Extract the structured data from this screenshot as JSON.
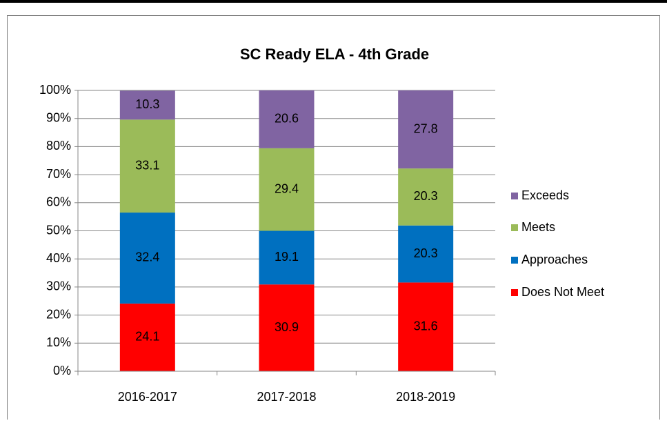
{
  "chart_data": {
    "type": "bar",
    "stacked": true,
    "title": "SC Ready ELA - 4th Grade",
    "categories": [
      "2016-2017",
      "2017-2018",
      "2018-2019"
    ],
    "series": [
      {
        "name": "Does Not Meet",
        "color": "#ff0000",
        "values": [
          24.1,
          30.9,
          31.6
        ]
      },
      {
        "name": "Approaches",
        "color": "#0070c0",
        "values": [
          32.4,
          19.1,
          20.3
        ]
      },
      {
        "name": "Meets",
        "color": "#9bbb59",
        "values": [
          33.1,
          29.4,
          20.3
        ]
      },
      {
        "name": "Exceeds",
        "color": "#8064a2",
        "values": [
          10.3,
          20.6,
          27.8
        ]
      }
    ],
    "ylim": [
      0,
      100
    ],
    "yticks": [
      {
        "value": 0,
        "label": "0%"
      },
      {
        "value": 10,
        "label": "10%"
      },
      {
        "value": 20,
        "label": "20%"
      },
      {
        "value": 30,
        "label": "30%"
      },
      {
        "value": 40,
        "label": "40%"
      },
      {
        "value": 50,
        "label": "50%"
      },
      {
        "value": 60,
        "label": "60%"
      },
      {
        "value": 70,
        "label": "70%"
      },
      {
        "value": 80,
        "label": "80%"
      },
      {
        "value": 90,
        "label": "90%"
      },
      {
        "value": 100,
        "label": "100%"
      }
    ],
    "grid": true,
    "legend": "right",
    "data_labels": true
  }
}
